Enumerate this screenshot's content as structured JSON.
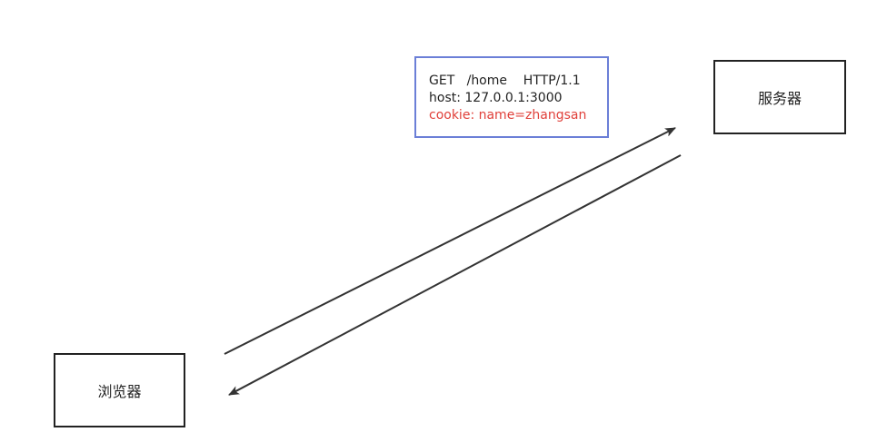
{
  "nodes": {
    "server": {
      "label": "服务器"
    },
    "browser": {
      "label": "浏览器"
    }
  },
  "request": {
    "lines": [
      "GET   /home    HTTP/1.1",
      "host: 127.0.0.1:3000",
      "cookie: name=zhangsan"
    ]
  },
  "colors": {
    "node_border": "#222222",
    "request_border": "#6b7fd7",
    "cookie_text": "#e0403a",
    "arrow": "#333333"
  }
}
